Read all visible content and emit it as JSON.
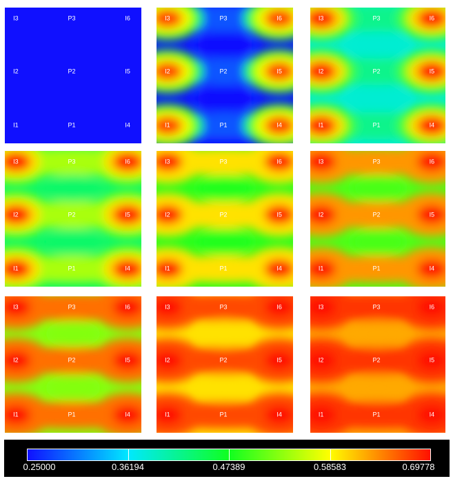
{
  "label_text": {
    "I1": "I1",
    "I2": "I2",
    "I3": "I3",
    "I4": "I4",
    "I5": "I5",
    "I6": "I6",
    "P1": "P1",
    "P2": "P2",
    "P3": "P3"
  },
  "panels": [
    {
      "hot": 0.0,
      "saddle": 0.0,
      "base": 0.0
    },
    {
      "hot": 0.95,
      "saddle": 0.08,
      "base": 0.0
    },
    {
      "hot": 1.0,
      "saddle": 0.38,
      "base": 0.3
    },
    {
      "hot": 1.0,
      "saddle": 0.66,
      "base": 0.42
    },
    {
      "hot": 1.0,
      "saddle": 0.78,
      "base": 0.52
    },
    {
      "hot": 1.0,
      "saddle": 0.86,
      "base": 0.56
    },
    {
      "hot": 1.0,
      "saddle": 0.9,
      "base": 0.62
    },
    {
      "hot": 1.0,
      "saddle": 0.94,
      "base": 0.78
    },
    {
      "hot": 1.0,
      "saddle": 0.96,
      "base": 0.84
    }
  ],
  "colorbar": {
    "min": 0.25,
    "max": 0.69778,
    "ticks": [
      "0.25000",
      "0.36194",
      "0.47389",
      "0.58583",
      "0.69778"
    ],
    "colors": [
      "#1010ff",
      "#00e8ff",
      "#10ff20",
      "#ffff00",
      "#ff1000"
    ]
  }
}
